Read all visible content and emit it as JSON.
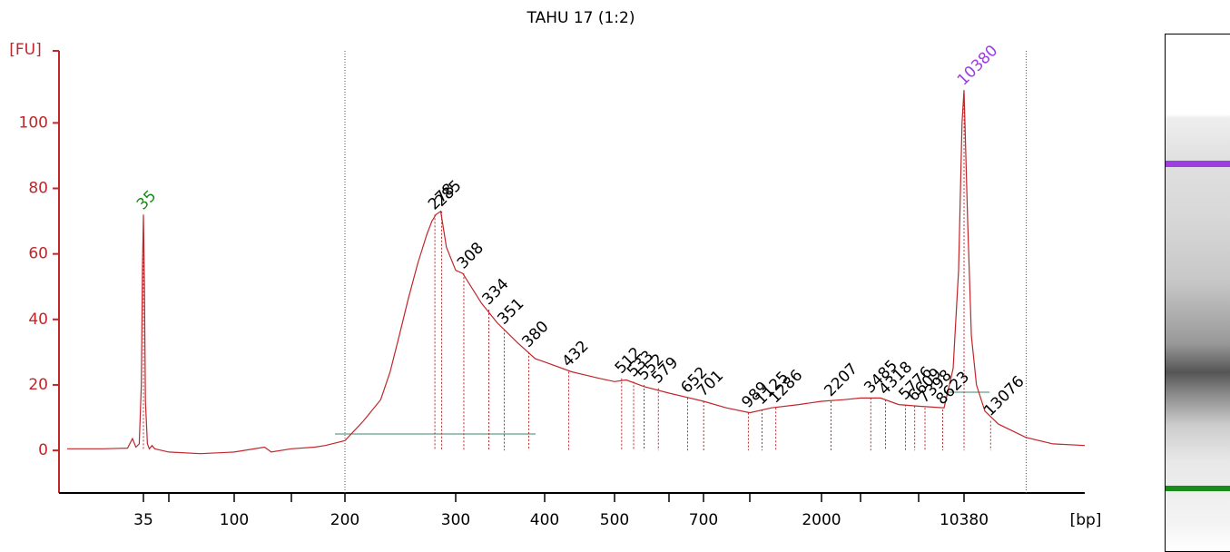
{
  "chart_data": {
    "type": "line",
    "title": "TAHU 17 (1:2)",
    "y_label": "[FU]",
    "x_label": "[bp]",
    "color": "#c0262a",
    "ylim": [
      -13,
      122
    ],
    "yticks": [
      0,
      20,
      40,
      60,
      80,
      100
    ],
    "xlim": [
      11,
      29600
    ],
    "xticks": [
      35,
      {
        "value": 50,
        "label": null
      },
      100,
      {
        "value": 150,
        "label": null
      },
      200,
      300,
      400,
      500,
      {
        "value": 600,
        "label": null
      },
      700,
      {
        "value": 1000,
        "label": null
      },
      2000,
      {
        "value": 3000,
        "label": null
      },
      {
        "value": 7000,
        "label": null
      },
      10380
    ],
    "region": [
      200,
      17800
    ],
    "x": [
      12,
      20,
      28,
      30,
      31.5,
      33,
      34,
      34.5,
      35,
      35.5,
      36,
      37,
      38,
      39.5,
      41,
      50,
      70,
      100,
      124,
      130,
      150,
      170,
      180,
      200,
      214,
      228,
      236,
      244,
      252,
      261,
      270,
      275,
      279,
      284,
      290,
      300,
      307,
      326,
      343,
      366,
      388,
      400,
      436,
      476,
      500,
      520,
      552,
      600,
      659,
      700,
      834,
      1000,
      1234,
      1606,
      2000,
      2532,
      3000,
      4015,
      5232,
      7000,
      8730,
      9440,
      9900,
      10200,
      10380,
      10712,
      11060,
      11560,
      12440,
      14000,
      17720,
      22450,
      29600
    ],
    "values": [
      0.5,
      0.5,
      0.7,
      3.6,
      1,
      2,
      20,
      55,
      72,
      50,
      15,
      2,
      0.5,
      1.5,
      0.5,
      -0.5,
      -1,
      -0.5,
      1,
      -0.5,
      0.5,
      1,
      1.5,
      3,
      9,
      15.5,
      24,
      35,
      46,
      57,
      66,
      70,
      72,
      73,
      62,
      55,
      54,
      45,
      39,
      33,
      28,
      27,
      24,
      22,
      21,
      21.5,
      19.5,
      17.5,
      16,
      15,
      13,
      11.5,
      13,
      14,
      15,
      15.5,
      16,
      16,
      14,
      13.5,
      13,
      25,
      55,
      100,
      110,
      70,
      35,
      20,
      12,
      8,
      4,
      2,
      1.5
    ],
    "peaks": [
      {
        "x": 35,
        "fu": 72,
        "color": "#1a8a1a"
      },
      {
        "x": 278,
        "fu": 72,
        "color": "#000000"
      },
      {
        "x": 285,
        "fu": 73,
        "color": "#000000"
      },
      {
        "x": 308,
        "fu": 54,
        "color": "#000000"
      },
      {
        "x": 334,
        "fu": 43,
        "color": "#000000"
      },
      {
        "x": 351,
        "fu": 37,
        "color": "#000000"
      },
      {
        "x": 380,
        "fu": 30,
        "color": "#000000"
      },
      {
        "x": 432,
        "fu": 24,
        "color": "#000000"
      },
      {
        "x": 512,
        "fu": 22,
        "color": "#000000"
      },
      {
        "x": 533,
        "fu": 21,
        "color": "#000000"
      },
      {
        "x": 552,
        "fu": 20,
        "color": "#000000"
      },
      {
        "x": 579,
        "fu": 19,
        "color": "#000000"
      },
      {
        "x": 652,
        "fu": 16,
        "color": "#000000"
      },
      {
        "x": 701,
        "fu": 15,
        "color": "#000000"
      },
      {
        "x": 989,
        "fu": 11.5,
        "color": "#000000"
      },
      {
        "x": 1125,
        "fu": 12.5,
        "color": "#000000"
      },
      {
        "x": 1286,
        "fu": 13,
        "color": "#000000"
      },
      {
        "x": 2207,
        "fu": 15,
        "color": "#000000"
      },
      {
        "x": 3485,
        "fu": 16,
        "color": "#000000"
      },
      {
        "x": 4318,
        "fu": 15.5,
        "color": "#000000"
      },
      {
        "x": 5776,
        "fu": 14,
        "color": "#000000"
      },
      {
        "x": 6609,
        "fu": 13.5,
        "color": "#000000"
      },
      {
        "x": 7398,
        "fu": 13,
        "color": "#000000"
      },
      {
        "x": 8623,
        "fu": 12.5,
        "color": "#000000"
      },
      {
        "x": 10380,
        "fu": 110,
        "color": "#9b3fe0"
      },
      {
        "x": 13076,
        "fu": 9,
        "color": "#000000"
      }
    ]
  }
}
